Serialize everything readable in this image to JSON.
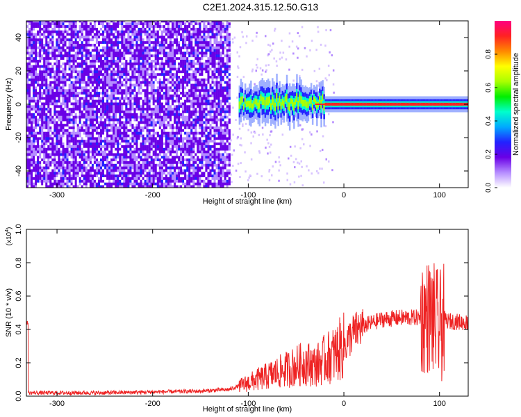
{
  "title": "C2E1.2024.315.12.50.G13",
  "colors": {
    "line": "#ee2222",
    "colormap": [
      "#ffffff",
      "#b58cff",
      "#6a00e6",
      "#2222ff",
      "#00aaff",
      "#00ffcc",
      "#00ee00",
      "#aaff00",
      "#ffff00",
      "#ff8800",
      "#ff2222",
      "#ff0080"
    ]
  },
  "chart_data": [
    {
      "type": "heatmap",
      "xlabel": "Height of straight line (km)",
      "ylabel": "Frequency (Hz)",
      "xlim": [
        -332,
        130
      ],
      "ylim": [
        -50,
        50
      ],
      "xticks": [
        -300,
        -200,
        -100,
        0,
        100
      ],
      "yticks": [
        -40,
        -20,
        0,
        20,
        40
      ],
      "colorbar": {
        "label": "Normalized spectral amplitude",
        "range": [
          0,
          1
        ],
        "ticks": [
          "0.0",
          "0.2",
          "0.4",
          "0.6",
          "0.8"
        ]
      },
      "description_values": {
        "noise_region_x": [
          -332,
          -120
        ],
        "signal_band_freq_hz": 0,
        "signal_start_x": -110
      }
    },
    {
      "type": "line",
      "xlabel": "Height of straight line (km)",
      "ylabel": "SNR (10 * v/v)",
      "y_scale_label": "(x10",
      "y_scale_exp": "4",
      "xlim": [
        -332,
        130
      ],
      "ylim": [
        0,
        1.0
      ],
      "xticks": [
        -300,
        -200,
        -100,
        0,
        100
      ],
      "yticks": [
        "0.0",
        "0.2",
        "0.4",
        "0.6",
        "0.8",
        "1.0"
      ],
      "series": [
        {
          "x": [
            -330,
            -300,
            -250,
            -200,
            -150,
            -120,
            -100,
            -80,
            -60,
            -40,
            -30,
            -20,
            -10,
            0,
            10,
            20,
            40,
            60,
            80,
            90,
            95,
            100,
            105,
            110,
            130
          ],
          "values": [
            0.02,
            0.02,
            0.02,
            0.025,
            0.03,
            0.04,
            0.08,
            0.12,
            0.16,
            0.2,
            0.18,
            0.22,
            0.25,
            0.3,
            0.38,
            0.42,
            0.46,
            0.47,
            0.47,
            0.48,
            0.45,
            0.4,
            0.46,
            0.45,
            0.44
          ]
        }
      ]
    }
  ]
}
